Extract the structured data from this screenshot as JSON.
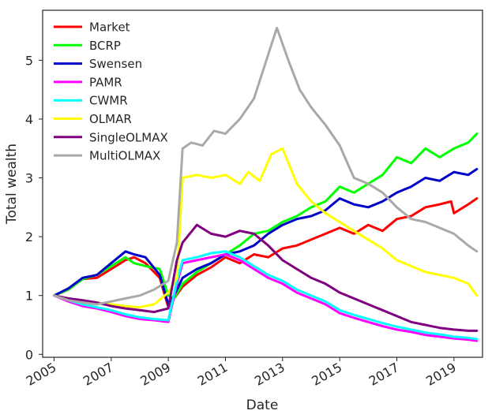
{
  "chart_data": {
    "type": "line",
    "title": "",
    "xlabel": "Date",
    "ylabel": "Total wealth",
    "xlim": [
      2004.6,
      2020.0
    ],
    "ylim": [
      -0.05,
      5.85
    ],
    "x_ticks": [
      2005,
      2007,
      2009,
      2011,
      2013,
      2015,
      2017,
      2019
    ],
    "x_tick_labels": [
      "2005",
      "2007",
      "2009",
      "2011",
      "2013",
      "2015",
      "2017",
      "2019"
    ],
    "y_ticks": [
      0,
      1,
      2,
      3,
      4,
      5
    ],
    "y_tick_labels": [
      "0",
      "1",
      "2",
      "3",
      "4",
      "5"
    ],
    "grid": false,
    "legend_position": "top-left",
    "series": [
      {
        "name": "Market",
        "color": "#ff0000",
        "x": [
          2005.0,
          2005.5,
          2006.0,
          2006.5,
          2007.0,
          2007.5,
          2007.8,
          2008.2,
          2008.7,
          2009.0,
          2009.2,
          2009.5,
          2010.0,
          2010.5,
          2011.0,
          2011.5,
          2012.0,
          2012.5,
          2013.0,
          2013.5,
          2014.0,
          2014.5,
          2015.0,
          2015.5,
          2016.0,
          2016.5,
          2017.0,
          2017.5,
          2018.0,
          2018.5,
          2018.9,
          2019.0,
          2019.5,
          2019.8
        ],
        "y": [
          1.0,
          1.1,
          1.28,
          1.3,
          1.45,
          1.6,
          1.65,
          1.55,
          1.3,
          0.8,
          0.95,
          1.15,
          1.35,
          1.48,
          1.65,
          1.55,
          1.7,
          1.65,
          1.8,
          1.85,
          1.95,
          2.05,
          2.15,
          2.05,
          2.2,
          2.1,
          2.3,
          2.35,
          2.5,
          2.55,
          2.6,
          2.4,
          2.55,
          2.65
        ]
      },
      {
        "name": "BCRP",
        "color": "#00ff00",
        "x": [
          2005.0,
          2005.5,
          2006.0,
          2006.5,
          2007.0,
          2007.5,
          2007.8,
          2008.2,
          2008.7,
          2009.0,
          2009.2,
          2009.5,
          2010.0,
          2010.5,
          2011.0,
          2011.5,
          2012.0,
          2012.5,
          2013.0,
          2013.5,
          2014.0,
          2014.5,
          2015.0,
          2015.5,
          2016.0,
          2016.5,
          2017.0,
          2017.5,
          2018.0,
          2018.5,
          2019.0,
          2019.5,
          2019.8
        ],
        "y": [
          1.0,
          1.1,
          1.28,
          1.35,
          1.5,
          1.65,
          1.55,
          1.5,
          1.45,
          1.0,
          0.95,
          1.2,
          1.4,
          1.55,
          1.7,
          1.85,
          2.05,
          2.1,
          2.25,
          2.35,
          2.5,
          2.6,
          2.85,
          2.75,
          2.9,
          3.05,
          3.35,
          3.25,
          3.5,
          3.35,
          3.5,
          3.6,
          3.75
        ]
      },
      {
        "name": "Swensen",
        "color": "#0000c8",
        "x": [
          2005.0,
          2005.5,
          2006.0,
          2006.5,
          2007.0,
          2007.5,
          2007.8,
          2008.2,
          2008.7,
          2009.0,
          2009.2,
          2009.5,
          2010.0,
          2010.5,
          2011.0,
          2011.5,
          2012.0,
          2012.5,
          2013.0,
          2013.5,
          2014.0,
          2014.5,
          2015.0,
          2015.5,
          2016.0,
          2016.5,
          2017.0,
          2017.5,
          2018.0,
          2018.5,
          2019.0,
          2019.5,
          2019.8
        ],
        "y": [
          1.0,
          1.12,
          1.3,
          1.35,
          1.55,
          1.75,
          1.7,
          1.65,
          1.35,
          0.85,
          1.0,
          1.3,
          1.45,
          1.55,
          1.7,
          1.75,
          1.85,
          2.05,
          2.2,
          2.3,
          2.35,
          2.45,
          2.65,
          2.55,
          2.5,
          2.6,
          2.75,
          2.85,
          3.0,
          2.95,
          3.1,
          3.05,
          3.15
        ]
      },
      {
        "name": "PAMR",
        "color": "#ff00ff",
        "x": [
          2005.0,
          2005.5,
          2006.0,
          2006.5,
          2007.0,
          2007.5,
          2008.0,
          2008.5,
          2009.0,
          2009.3,
          2009.5,
          2010.0,
          2010.5,
          2011.0,
          2011.5,
          2012.0,
          2012.5,
          2013.0,
          2013.5,
          2014.0,
          2014.5,
          2015.0,
          2015.5,
          2016.0,
          2016.5,
          2017.0,
          2017.5,
          2018.0,
          2018.5,
          2019.0,
          2019.5,
          2019.8
        ],
        "y": [
          1.0,
          0.9,
          0.82,
          0.78,
          0.72,
          0.65,
          0.6,
          0.58,
          0.55,
          1.2,
          1.55,
          1.6,
          1.65,
          1.7,
          1.6,
          1.45,
          1.3,
          1.2,
          1.05,
          0.95,
          0.85,
          0.7,
          0.62,
          0.55,
          0.48,
          0.42,
          0.38,
          0.33,
          0.3,
          0.27,
          0.25,
          0.23
        ]
      },
      {
        "name": "CWMR",
        "color": "#00ffff",
        "x": [
          2005.0,
          2005.5,
          2006.0,
          2006.5,
          2007.0,
          2007.5,
          2008.0,
          2008.5,
          2009.0,
          2009.3,
          2009.5,
          2010.0,
          2010.5,
          2011.0,
          2011.5,
          2012.0,
          2012.5,
          2013.0,
          2013.5,
          2014.0,
          2014.5,
          2015.0,
          2015.5,
          2016.0,
          2016.5,
          2017.0,
          2017.5,
          2018.0,
          2018.5,
          2019.0,
          2019.5,
          2019.8
        ],
        "y": [
          1.0,
          0.92,
          0.85,
          0.8,
          0.75,
          0.68,
          0.63,
          0.6,
          0.58,
          1.25,
          1.6,
          1.65,
          1.72,
          1.75,
          1.65,
          1.5,
          1.35,
          1.25,
          1.1,
          1.0,
          0.9,
          0.75,
          0.67,
          0.6,
          0.53,
          0.47,
          0.42,
          0.37,
          0.34,
          0.3,
          0.28,
          0.26
        ]
      },
      {
        "name": "OLMAR",
        "color": "#ffff00",
        "x": [
          2005.0,
          2005.5,
          2006.0,
          2006.5,
          2007.0,
          2007.5,
          2008.0,
          2008.5,
          2009.0,
          2009.3,
          2009.5,
          2010.0,
          2010.5,
          2011.0,
          2011.5,
          2011.8,
          2012.2,
          2012.6,
          2013.0,
          2013.5,
          2014.0,
          2014.5,
          2015.0,
          2015.5,
          2016.0,
          2016.5,
          2017.0,
          2017.5,
          2018.0,
          2018.5,
          2019.0,
          2019.5,
          2019.8
        ],
        "y": [
          1.0,
          0.95,
          0.9,
          0.88,
          0.85,
          0.82,
          0.8,
          0.85,
          1.05,
          1.3,
          3.0,
          3.05,
          3.0,
          3.05,
          2.9,
          3.1,
          2.95,
          3.4,
          3.5,
          2.9,
          2.6,
          2.4,
          2.25,
          2.1,
          1.95,
          1.8,
          1.6,
          1.5,
          1.4,
          1.35,
          1.3,
          1.2,
          1.0
        ]
      },
      {
        "name": "SingleOLMAX",
        "color": "#800080",
        "x": [
          2005.0,
          2005.5,
          2006.0,
          2006.5,
          2007.0,
          2007.5,
          2008.0,
          2008.5,
          2009.0,
          2009.3,
          2009.5,
          2010.0,
          2010.5,
          2011.0,
          2011.5,
          2012.0,
          2012.5,
          2013.0,
          2013.5,
          2014.0,
          2014.5,
          2015.0,
          2015.5,
          2016.0,
          2016.5,
          2017.0,
          2017.5,
          2018.0,
          2018.5,
          2019.0,
          2019.5,
          2019.8
        ],
        "y": [
          1.0,
          0.95,
          0.92,
          0.88,
          0.82,
          0.78,
          0.75,
          0.72,
          0.78,
          1.6,
          1.9,
          2.2,
          2.05,
          2.0,
          2.1,
          2.05,
          1.85,
          1.6,
          1.45,
          1.3,
          1.2,
          1.05,
          0.95,
          0.85,
          0.75,
          0.65,
          0.55,
          0.5,
          0.45,
          0.42,
          0.4,
          0.4
        ]
      },
      {
        "name": "MultiOLMAX",
        "color": "#a9a9a9",
        "x": [
          2005.0,
          2005.5,
          2006.0,
          2006.5,
          2007.0,
          2007.5,
          2008.0,
          2008.5,
          2009.0,
          2009.3,
          2009.5,
          2009.8,
          2010.2,
          2010.6,
          2011.0,
          2011.5,
          2012.0,
          2012.5,
          2012.8,
          2013.2,
          2013.6,
          2014.0,
          2014.5,
          2015.0,
          2015.5,
          2016.0,
          2016.5,
          2017.0,
          2017.5,
          2018.0,
          2018.5,
          2019.0,
          2019.5,
          2019.8
        ],
        "y": [
          1.0,
          0.92,
          0.88,
          0.85,
          0.9,
          0.95,
          1.0,
          1.1,
          1.25,
          1.9,
          3.5,
          3.6,
          3.55,
          3.8,
          3.75,
          4.0,
          4.35,
          5.1,
          5.55,
          5.0,
          4.5,
          4.2,
          3.9,
          3.55,
          3.0,
          2.9,
          2.75,
          2.5,
          2.3,
          2.25,
          2.15,
          2.05,
          1.85,
          1.75
        ]
      }
    ]
  }
}
